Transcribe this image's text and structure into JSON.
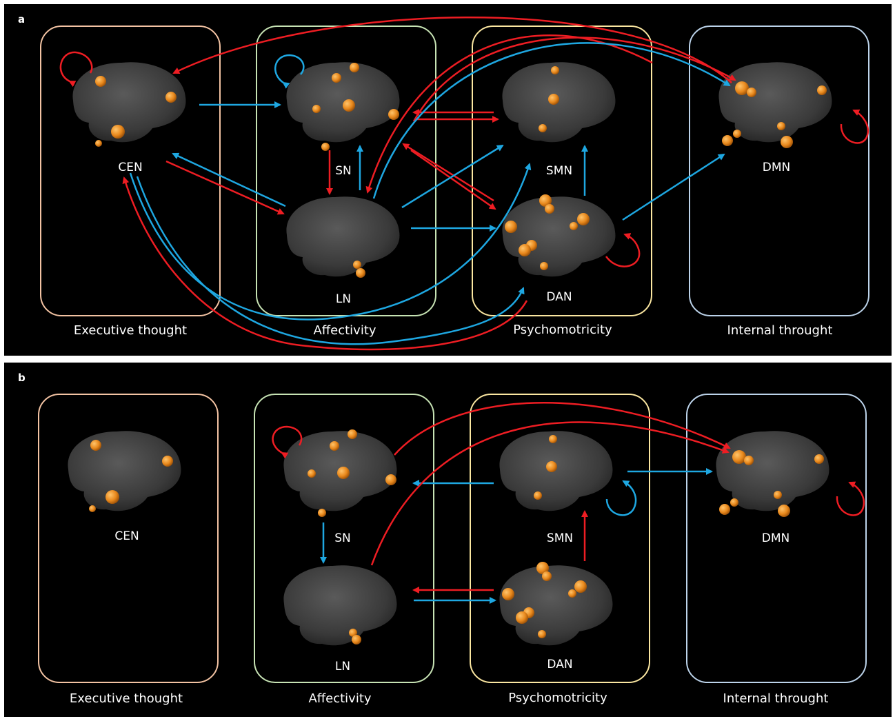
{
  "colors": {
    "background": "#000000",
    "excitatory_arrow": "#ee1d23",
    "inhibitory_arrow": "#1ea7e1",
    "executive_box": "#f3c3a3",
    "affectivity_box": "#c7e3b4",
    "psychomotricity_box": "#fbe7a1",
    "internal_box": "#bcd3ea",
    "node_color": "#e8881c"
  },
  "panel_a": {
    "letter": "a",
    "groups": {
      "executive": "Executive thought",
      "affectivity": "Affectivity",
      "psychomotricity": "Psychomotricity",
      "internal": "Internal throught"
    },
    "networks": {
      "cen": "CEN",
      "sn": "SN",
      "ln": "LN",
      "smn": "SMN",
      "dan": "DAN",
      "dmn": "DMN"
    }
  },
  "panel_b": {
    "letter": "b",
    "groups": {
      "executive": "Executive thought",
      "affectivity": "Affectivity",
      "psychomotricity": "Psychomotricity",
      "internal": "Internal throught"
    },
    "networks": {
      "cen": "CEN",
      "sn": "SN",
      "ln": "LN",
      "smn": "SMN",
      "dan": "DAN",
      "dmn": "DMN"
    }
  }
}
